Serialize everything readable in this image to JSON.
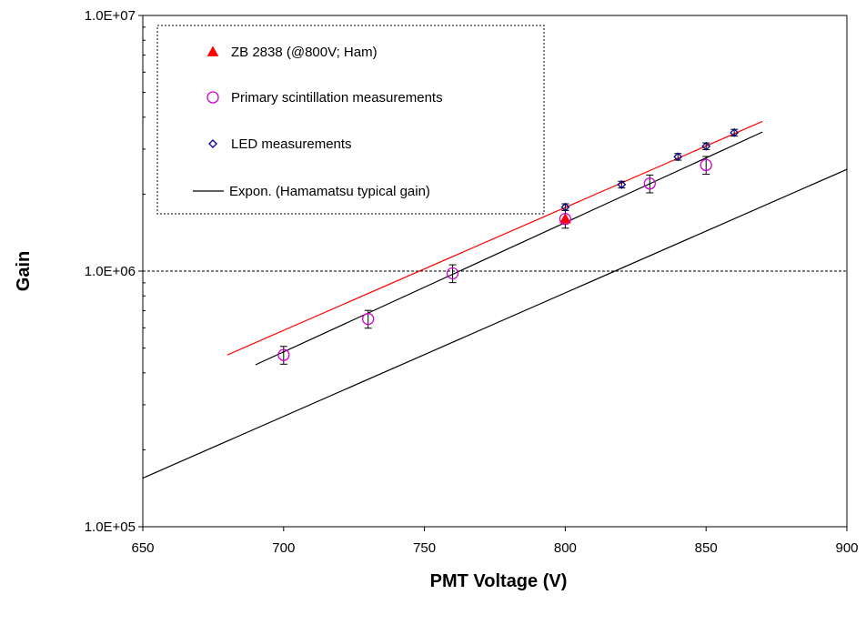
{
  "chart_data": {
    "type": "scatter",
    "xlabel": "PMT Voltage (V)",
    "ylabel": "Gain",
    "xlim": [
      650,
      900
    ],
    "ylim": [
      100000,
      10000000
    ],
    "yscale": "log",
    "x_ticks": [
      650,
      700,
      750,
      800,
      850,
      900
    ],
    "x_tick_labels": [
      "650",
      "700",
      "750",
      "800",
      "850",
      "900"
    ],
    "y_ticks": [
      100000,
      1000000,
      10000000
    ],
    "y_tick_labels": [
      "1.0E+05",
      "1.0E+06",
      "1.0E+07"
    ],
    "grid": "horizontal dashed at 1.0E+06",
    "legend_position": "top-left",
    "series": [
      {
        "name": "ZB 2838 (@800V; Ham)",
        "kind": "marker",
        "marker": "triangle",
        "color": "#ff0000",
        "x": [
          800
        ],
        "y": [
          1600000
        ]
      },
      {
        "name": "Primary scintillation measurements",
        "kind": "marker",
        "marker": "circle",
        "color": "#cc00cc",
        "x": [
          700,
          730,
          760,
          800,
          830,
          850
        ],
        "y": [
          470000,
          650000,
          980000,
          1600000,
          2200000,
          2600000
        ],
        "error_bars": true,
        "yerr": [
          0.08,
          0.08,
          0.08,
          0.08,
          0.08,
          0.08
        ]
      },
      {
        "name": "LED measurements",
        "kind": "marker",
        "marker": "diamond",
        "color": "#00008b",
        "x": [
          800,
          820,
          840,
          850,
          860
        ],
        "y": [
          1780000,
          2180000,
          2800000,
          3080000,
          3480000
        ],
        "error_bars": true,
        "yerr": [
          0.03,
          0.03,
          0.03,
          0.03,
          0.03
        ]
      },
      {
        "name": "Expon. (Hamamatsu typical gain)",
        "kind": "line",
        "color": "#000000",
        "x": [
          650,
          900
        ],
        "y": [
          155000,
          2500000
        ]
      }
    ],
    "unlabeled_lines": [
      {
        "color": "#ff0000",
        "x": [
          680,
          870
        ],
        "y": [
          470000,
          3850000
        ]
      },
      {
        "color": "#000000",
        "x": [
          690,
          870
        ],
        "y": [
          430000,
          3500000
        ]
      }
    ]
  }
}
